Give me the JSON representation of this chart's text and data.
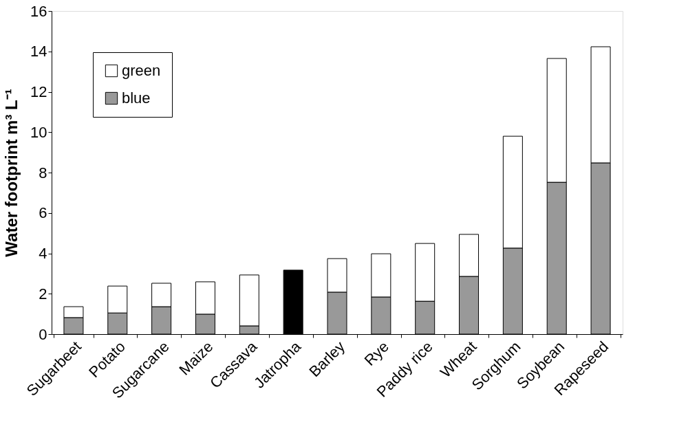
{
  "chart_data": {
    "type": "bar",
    "stacked": true,
    "ylabel": "Water footprint m³ L⁻¹",
    "categories": [
      "Sugarbeet",
      "Potato",
      "Sugarcane",
      "Maize",
      "Cassava",
      "Jatropha",
      "Barley",
      "Rye",
      "Paddy rice",
      "Wheat",
      "Sorghum",
      "Soybean",
      "Rapeseed"
    ],
    "series": [
      {
        "name": "blue",
        "color": "#999999",
        "colors": [
          "#999999",
          "#999999",
          "#999999",
          "#999999",
          "#999999",
          "#000000",
          "#999999",
          "#999999",
          "#999999",
          "#999999",
          "#999999",
          "#999999",
          "#999999"
        ],
        "values": [
          0.82,
          1.05,
          1.36,
          0.99,
          0.41,
          3.17,
          2.08,
          1.84,
          1.63,
          2.86,
          4.26,
          7.52,
          8.48
        ]
      },
      {
        "name": "green",
        "color": "#ffffff",
        "values": [
          0.54,
          1.33,
          1.16,
          1.6,
          2.52,
          null,
          1.66,
          2.14,
          2.86,
          2.08,
          5.54,
          6.13,
          5.75
        ]
      }
    ],
    "ylim": [
      0,
      16
    ],
    "yticks": [
      0,
      2,
      4,
      6,
      8,
      10,
      12,
      14,
      16
    ],
    "grid": false,
    "legend": "top left"
  }
}
